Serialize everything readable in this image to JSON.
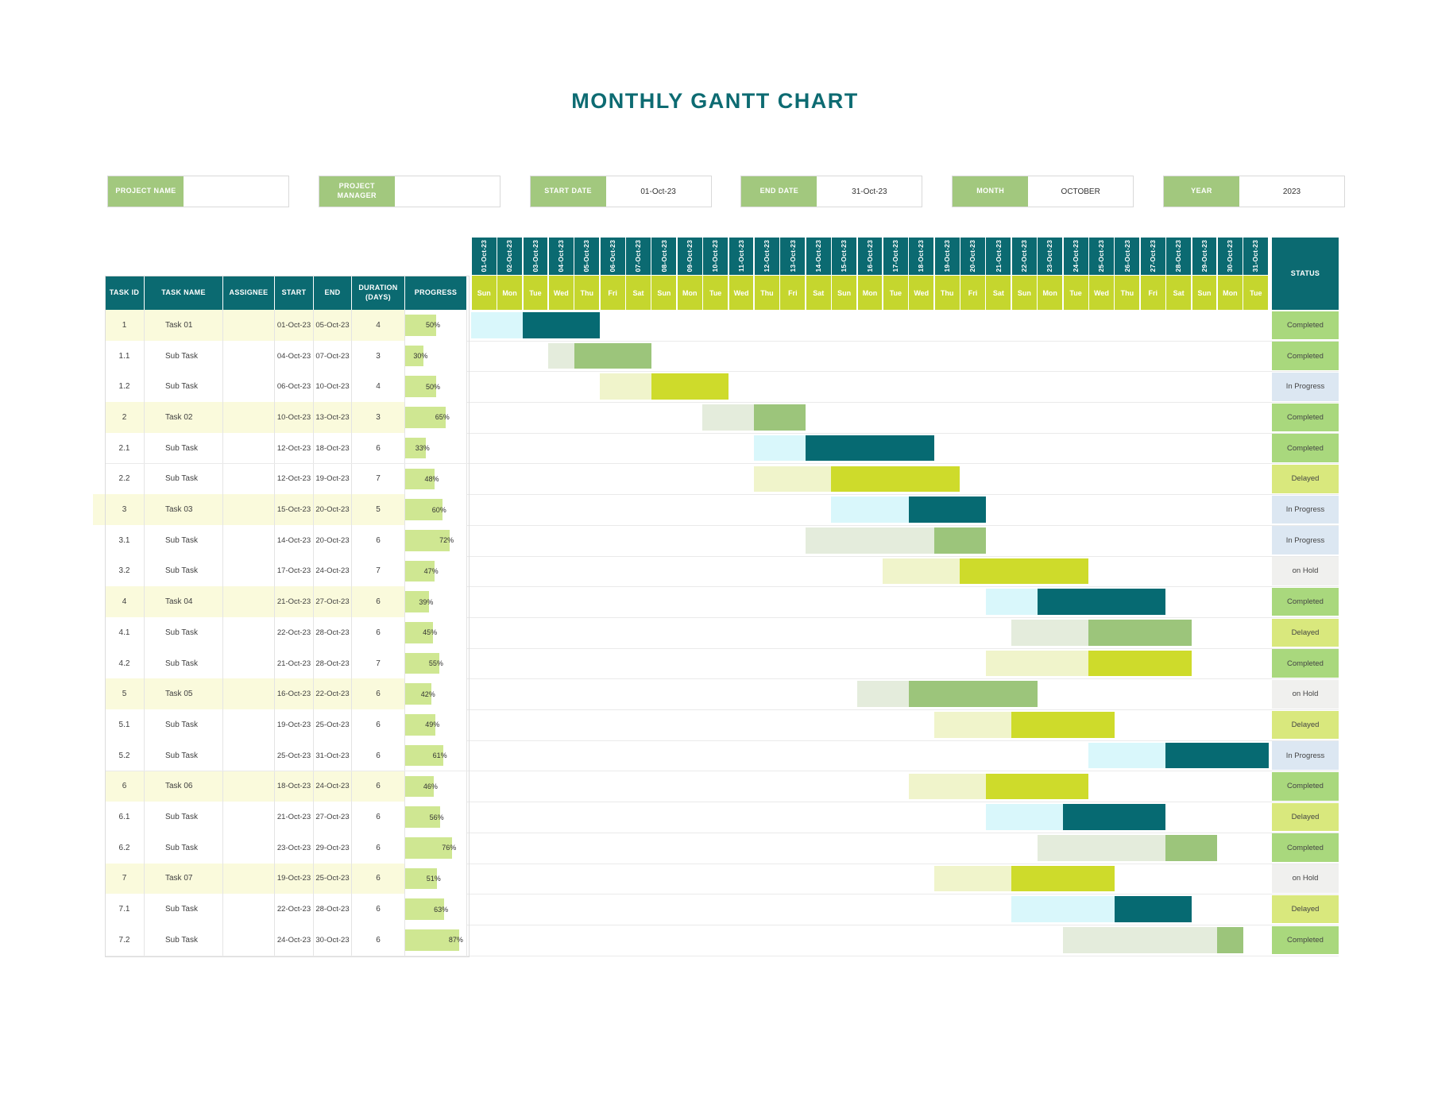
{
  "title": "MONTHLY GANTT CHART",
  "info_boxes": [
    {
      "label": "PROJECT NAME",
      "value": ""
    },
    {
      "label": "PROJECT MANAGER",
      "value": ""
    },
    {
      "label": "START DATE",
      "value": "01-Oct-23"
    },
    {
      "label": "END DATE",
      "value": "31-Oct-23"
    },
    {
      "label": "MONTH",
      "value": "OCTOBER"
    },
    {
      "label": "YEAR",
      "value": "2023"
    }
  ],
  "table": {
    "columns": [
      "TASK ID",
      "TASK NAME",
      "ASSIGNEE",
      "START",
      "END",
      "DURATION (DAYS)",
      "PROGRESS"
    ],
    "status_header": "STATUS"
  },
  "chart_data": {
    "type": "bar",
    "subtype": "gantt",
    "title": "MONTHLY GANTT CHART",
    "x_axis": {
      "unit": "day",
      "labels": [
        "01-Oct-23",
        "02-Oct-23",
        "03-Oct-23",
        "04-Oct-23",
        "05-Oct-23",
        "06-Oct-23",
        "07-Oct-23",
        "08-Oct-23",
        "09-Oct-23",
        "10-Oct-23",
        "11-Oct-23",
        "12-Oct-23",
        "13-Oct-23",
        "14-Oct-23",
        "15-Oct-23",
        "16-Oct-23",
        "17-Oct-23",
        "18-Oct-23",
        "19-Oct-23",
        "20-Oct-23",
        "21-Oct-23",
        "22-Oct-23",
        "23-Oct-23",
        "24-Oct-23",
        "25-Oct-23",
        "26-Oct-23",
        "27-Oct-23",
        "28-Oct-23",
        "29-Oct-23",
        "30-Oct-23",
        "31-Oct-23"
      ],
      "weekdays": [
        "Sun",
        "Mon",
        "Tue",
        "Wed",
        "Thu",
        "Fri",
        "Sat",
        "Sun",
        "Mon",
        "Tue",
        "Wed",
        "Thu",
        "Fri",
        "Sat",
        "Sun",
        "Mon",
        "Tue",
        "Wed",
        "Thu",
        "Fri",
        "Sat",
        "Sun",
        "Mon",
        "Tue",
        "Wed",
        "Thu",
        "Fri",
        "Sat",
        "Sun",
        "Mon",
        "Tue"
      ]
    },
    "tasks": [
      {
        "id": "1",
        "name": "Task 01",
        "assignee": "",
        "start": "01-Oct-23",
        "end": "05-Oct-23",
        "duration": 4,
        "progress_pct": 50,
        "status": "Completed",
        "is_parent": true,
        "bar_start_day": 1,
        "bar_dark_from_day": 3,
        "bar_end_day": 5,
        "color_scheme": "teal"
      },
      {
        "id": "1.1",
        "name": "Sub Task",
        "assignee": "",
        "start": "04-Oct-23",
        "end": "07-Oct-23",
        "duration": 3,
        "progress_pct": 30,
        "status": "Completed",
        "is_parent": false,
        "bar_start_day": 4,
        "bar_dark_from_day": 5,
        "bar_end_day": 7,
        "color_scheme": "sage"
      },
      {
        "id": "1.2",
        "name": "Sub Task",
        "assignee": "",
        "start": "06-Oct-23",
        "end": "10-Oct-23",
        "duration": 4,
        "progress_pct": 50,
        "status": "In Progress",
        "is_parent": false,
        "bar_start_day": 6,
        "bar_dark_from_day": 8,
        "bar_end_day": 10,
        "color_scheme": "chartreuse"
      },
      {
        "id": "2",
        "name": "Task 02",
        "assignee": "",
        "start": "10-Oct-23",
        "end": "13-Oct-23",
        "duration": 3,
        "progress_pct": 65,
        "status": "Completed",
        "is_parent": true,
        "bar_start_day": 10,
        "bar_dark_from_day": 12,
        "bar_end_day": 13,
        "color_scheme": "sage"
      },
      {
        "id": "2.1",
        "name": "Sub Task",
        "assignee": "",
        "start": "12-Oct-23",
        "end": "18-Oct-23",
        "duration": 6,
        "progress_pct": 33,
        "status": "Completed",
        "is_parent": false,
        "bar_start_day": 12,
        "bar_dark_from_day": 14,
        "bar_end_day": 18,
        "color_scheme": "teal"
      },
      {
        "id": "2.2",
        "name": "Sub Task",
        "assignee": "",
        "start": "12-Oct-23",
        "end": "19-Oct-23",
        "duration": 7,
        "progress_pct": 48,
        "status": "Delayed",
        "is_parent": false,
        "bar_start_day": 12,
        "bar_dark_from_day": 15,
        "bar_end_day": 19,
        "color_scheme": "chartreuse"
      },
      {
        "id": "3",
        "name": "Task 03",
        "assignee": "",
        "start": "15-Oct-23",
        "end": "20-Oct-23",
        "duration": 5,
        "progress_pct": 60,
        "status": "In Progress",
        "is_parent": true,
        "row_highlight": true,
        "bar_start_day": 15,
        "bar_dark_from_day": 18,
        "bar_end_day": 20,
        "color_scheme": "teal"
      },
      {
        "id": "3.1",
        "name": "Sub Task",
        "assignee": "",
        "start": "14-Oct-23",
        "end": "20-Oct-23",
        "duration": 6,
        "progress_pct": 72,
        "status": "In Progress",
        "is_parent": false,
        "bar_start_day": 14,
        "bar_dark_from_day": 19,
        "bar_end_day": 20,
        "color_scheme": "sage"
      },
      {
        "id": "3.2",
        "name": "Sub Task",
        "assignee": "",
        "start": "17-Oct-23",
        "end": "24-Oct-23",
        "duration": 7,
        "progress_pct": 47,
        "status": "on Hold",
        "is_parent": false,
        "bar_start_day": 17,
        "bar_dark_from_day": 20,
        "bar_end_day": 24,
        "color_scheme": "chartreuse"
      },
      {
        "id": "4",
        "name": "Task 04",
        "assignee": "",
        "start": "21-Oct-23",
        "end": "27-Oct-23",
        "duration": 6,
        "progress_pct": 39,
        "status": "Completed",
        "is_parent": true,
        "bar_start_day": 21,
        "bar_dark_from_day": 23,
        "bar_end_day": 27,
        "color_scheme": "teal"
      },
      {
        "id": "4.1",
        "name": "Sub Task",
        "assignee": "",
        "start": "22-Oct-23",
        "end": "28-Oct-23",
        "duration": 6,
        "progress_pct": 45,
        "status": "Delayed",
        "is_parent": false,
        "bar_start_day": 22,
        "bar_dark_from_day": 25,
        "bar_end_day": 28,
        "color_scheme": "sage"
      },
      {
        "id": "4.2",
        "name": "Sub Task",
        "assignee": "",
        "start": "21-Oct-23",
        "end": "28-Oct-23",
        "duration": 7,
        "progress_pct": 55,
        "status": "Completed",
        "is_parent": false,
        "bar_start_day": 21,
        "bar_dark_from_day": 25,
        "bar_end_day": 28,
        "color_scheme": "chartreuse"
      },
      {
        "id": "5",
        "name": "Task 05",
        "assignee": "",
        "start": "16-Oct-23",
        "end": "22-Oct-23",
        "duration": 6,
        "progress_pct": 42,
        "status": "on Hold",
        "is_parent": true,
        "bar_start_day": 16,
        "bar_dark_from_day": 18,
        "bar_end_day": 22,
        "color_scheme": "sage"
      },
      {
        "id": "5.1",
        "name": "Sub Task",
        "assignee": "",
        "start": "19-Oct-23",
        "end": "25-Oct-23",
        "duration": 6,
        "progress_pct": 49,
        "status": "Delayed",
        "is_parent": false,
        "bar_start_day": 19,
        "bar_dark_from_day": 22,
        "bar_end_day": 25,
        "color_scheme": "chartreuse"
      },
      {
        "id": "5.2",
        "name": "Sub Task",
        "assignee": "",
        "start": "25-Oct-23",
        "end": "31-Oct-23",
        "duration": 6,
        "progress_pct": 61,
        "status": "In Progress",
        "is_parent": false,
        "bar_start_day": 25,
        "bar_dark_from_day": 28,
        "bar_end_day": 31,
        "color_scheme": "teal"
      },
      {
        "id": "6",
        "name": "Task 06",
        "assignee": "",
        "start": "18-Oct-23",
        "end": "24-Oct-23",
        "duration": 6,
        "progress_pct": 46,
        "status": "Completed",
        "is_parent": true,
        "bar_start_day": 18,
        "bar_dark_from_day": 21,
        "bar_end_day": 24,
        "color_scheme": "chartreuse"
      },
      {
        "id": "6.1",
        "name": "Sub Task",
        "assignee": "",
        "start": "21-Oct-23",
        "end": "27-Oct-23",
        "duration": 6,
        "progress_pct": 56,
        "status": "Delayed",
        "is_parent": false,
        "bar_start_day": 21,
        "bar_dark_from_day": 24,
        "bar_end_day": 27,
        "color_scheme": "teal"
      },
      {
        "id": "6.2",
        "name": "Sub Task",
        "assignee": "",
        "start": "23-Oct-23",
        "end": "29-Oct-23",
        "duration": 6,
        "progress_pct": 76,
        "status": "Completed",
        "is_parent": false,
        "bar_start_day": 23,
        "bar_dark_from_day": 28,
        "bar_end_day": 29,
        "color_scheme": "sage"
      },
      {
        "id": "7",
        "name": "Task 07",
        "assignee": "",
        "start": "19-Oct-23",
        "end": "25-Oct-23",
        "duration": 6,
        "progress_pct": 51,
        "status": "on Hold",
        "is_parent": true,
        "bar_start_day": 19,
        "bar_dark_from_day": 22,
        "bar_end_day": 25,
        "color_scheme": "chartreuse"
      },
      {
        "id": "7.1",
        "name": "Sub Task",
        "assignee": "",
        "start": "22-Oct-23",
        "end": "28-Oct-23",
        "duration": 6,
        "progress_pct": 63,
        "status": "Delayed",
        "is_parent": false,
        "bar_start_day": 22,
        "bar_dark_from_day": 26,
        "bar_end_day": 28,
        "color_scheme": "teal"
      },
      {
        "id": "7.2",
        "name": "Sub Task",
        "assignee": "",
        "start": "24-Oct-23",
        "end": "30-Oct-23",
        "duration": 6,
        "progress_pct": 87,
        "status": "Completed",
        "is_parent": false,
        "bar_start_day": 24,
        "bar_dark_from_day": 30,
        "bar_end_day": 30,
        "color_scheme": "sage"
      }
    ]
  },
  "colors": {
    "title_teal": "#0d6b72",
    "header_teal": "#0b6a71",
    "day_header_green": "#c5d62e",
    "info_label_green": "#a2c87e",
    "parent_row_bg": "#fafadc",
    "progress_bar": "#cfe792",
    "schemes": {
      "teal": {
        "light": "#d9f7fb",
        "dark": "#066a72"
      },
      "sage": {
        "light": "#e4ecdc",
        "dark": "#9cc57b"
      },
      "chartreuse": {
        "light": "#f0f4cb",
        "dark": "#cedb2b"
      }
    },
    "status": {
      "Completed": "#a9d87d",
      "In Progress": "#dce7f2",
      "Delayed": "#d9e87d",
      "on Hold": "#f0f0ee"
    }
  }
}
